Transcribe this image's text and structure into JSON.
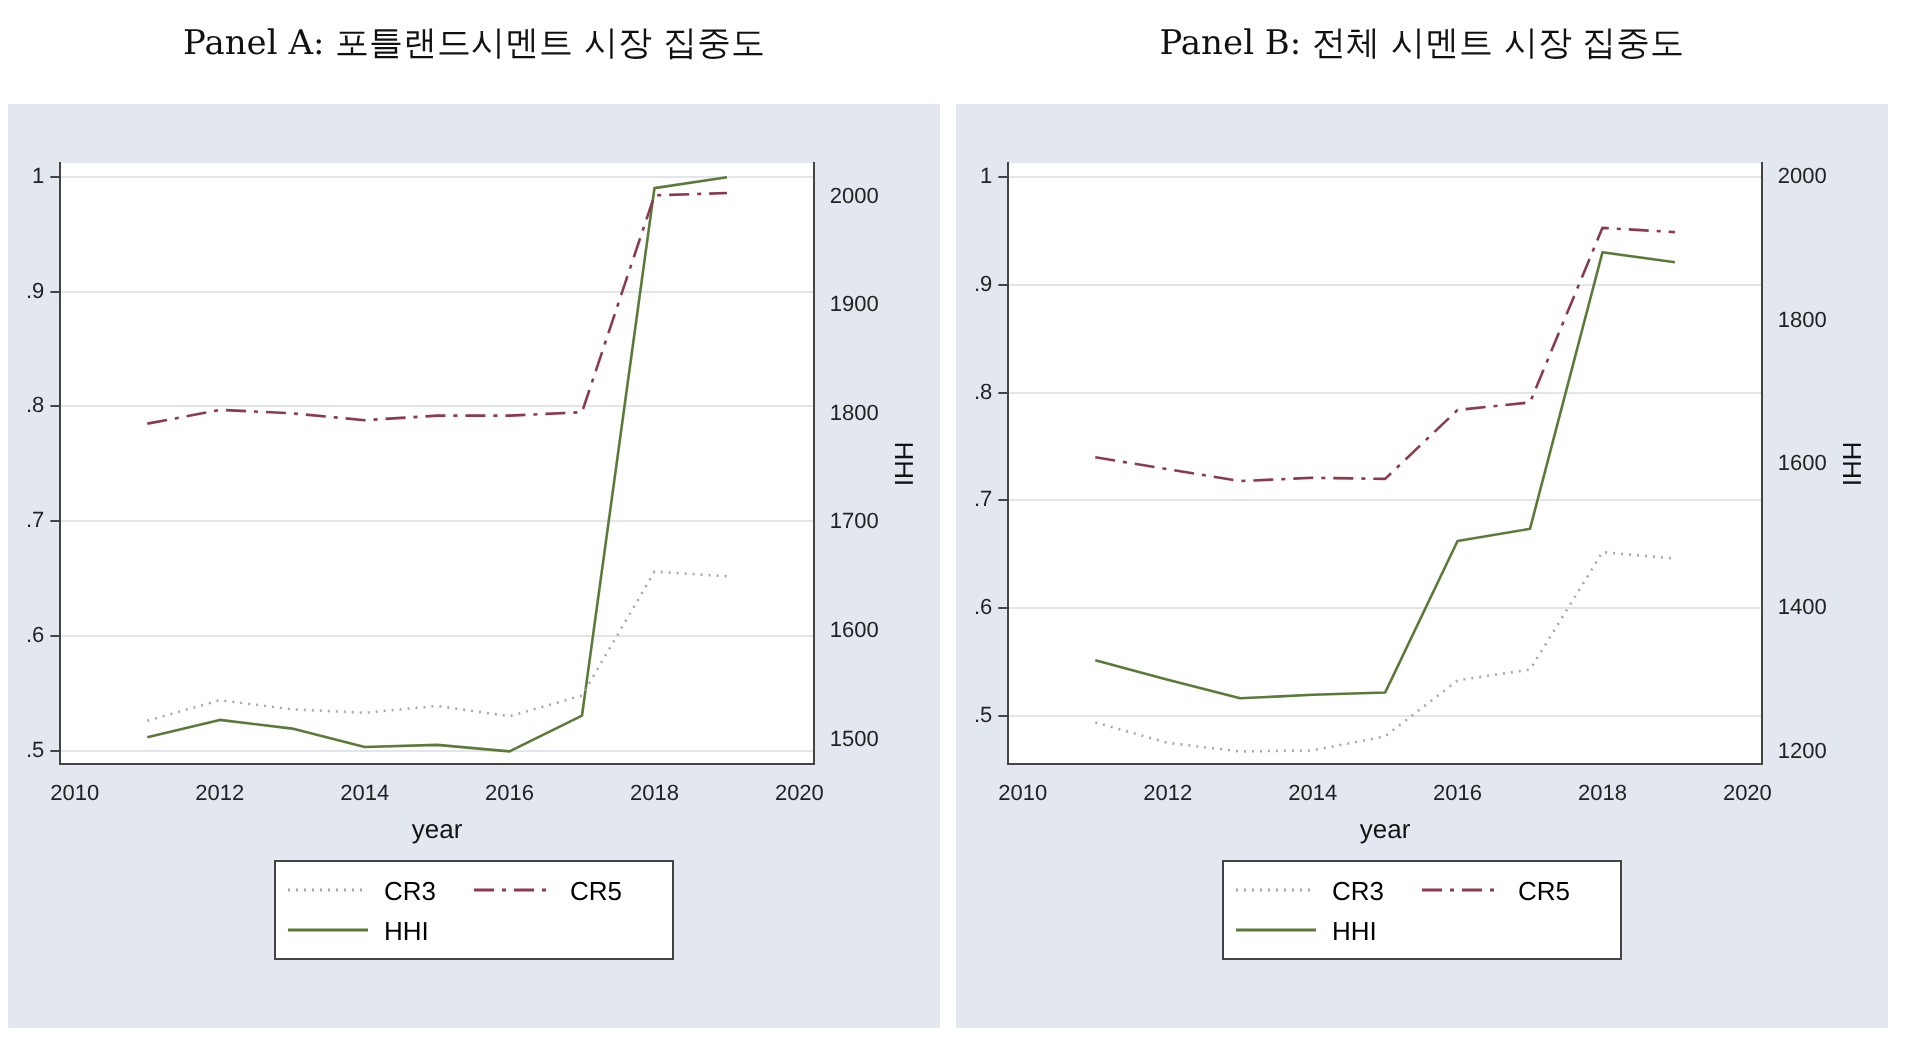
{
  "chart_data": [
    {
      "type": "line",
      "title": "Panel A: 포틀랜드시멘트 시장 집중도",
      "xlabel": "year",
      "y2label": "HHI",
      "x": [
        2011,
        2012,
        2013,
        2014,
        2015,
        2016,
        2017,
        2018,
        2019
      ],
      "xlim": [
        2009.8,
        2020.2
      ],
      "xticks": [
        2010,
        2012,
        2014,
        2016,
        2018,
        2020
      ],
      "ylim": [
        0.488,
        1.012
      ],
      "yticks": [
        {
          "value": 0.5,
          "label": ".5"
        },
        {
          "value": 0.6,
          "label": ".6"
        },
        {
          "value": 0.7,
          "label": ".7"
        },
        {
          "value": 0.8,
          "label": ".8"
        },
        {
          "value": 0.9,
          "label": ".9"
        },
        1
      ],
      "y2lim": [
        1477,
        2031
      ],
      "y2ticks": [
        1500,
        1600,
        1700,
        1800,
        1900,
        2000
      ],
      "grid": "y",
      "legend": "bottom",
      "marker": "none",
      "series": [
        {
          "name": "CR3",
          "color": "#a8a8a8",
          "line_style": "dotted",
          "values": [
            0.526,
            0.544,
            0.536,
            0.533,
            0.539,
            0.53,
            0.548,
            0.656,
            0.652
          ]
        },
        {
          "name": "CR5",
          "color": "#8b3a4e",
          "line_style": "dashed",
          "values": [
            0.785,
            0.797,
            0.794,
            0.788,
            0.792,
            0.792,
            0.795,
            0.984,
            0.986
          ]
        },
        {
          "name": "HHI",
          "color": "#5b7a3a",
          "line_style": "solid",
          "axis": "y2",
          "values": [
            1502,
            1518,
            1510,
            1493,
            1495,
            1489,
            1522,
            2008,
            2018
          ]
        }
      ]
    },
    {
      "type": "line",
      "title": "Panel B: 전체 시멘트 시장 집중도",
      "xlabel": "year",
      "y2label": "HHI",
      "x": [
        2011,
        2012,
        2013,
        2014,
        2015,
        2016,
        2017,
        2018,
        2019
      ],
      "xlim": [
        2009.8,
        2020.2
      ],
      "xticks": [
        2010,
        2012,
        2014,
        2016,
        2018,
        2020
      ],
      "ylim": [
        0.455,
        1.013
      ],
      "yticks": [
        {
          "value": 0.5,
          "label": ".5"
        },
        {
          "value": 0.6,
          "label": ".6"
        },
        {
          "value": 0.7,
          "label": ".7"
        },
        {
          "value": 0.8,
          "label": ".8"
        },
        {
          "value": 0.9,
          "label": ".9"
        },
        1
      ],
      "y2lim": [
        1182,
        2019
      ],
      "y2ticks": [
        1200,
        1400,
        1600,
        1800,
        2000
      ],
      "grid": "y",
      "legend": "bottom",
      "marker": "none",
      "series": [
        {
          "name": "CR3",
          "color": "#a8a8a8",
          "line_style": "dotted",
          "values": [
            0.494,
            0.475,
            0.467,
            0.468,
            0.481,
            0.533,
            0.543,
            0.652,
            0.646
          ]
        },
        {
          "name": "CR5",
          "color": "#8b3a4e",
          "line_style": "dashed",
          "values": [
            0.74,
            0.729,
            0.718,
            0.721,
            0.72,
            0.784,
            0.791,
            0.953,
            0.949
          ]
        },
        {
          "name": "HHI",
          "color": "#5b7a3a",
          "line_style": "solid",
          "axis": "y2",
          "values": [
            1327,
            1300,
            1274,
            1279,
            1282,
            1493,
            1510,
            1895,
            1881
          ]
        }
      ]
    }
  ]
}
